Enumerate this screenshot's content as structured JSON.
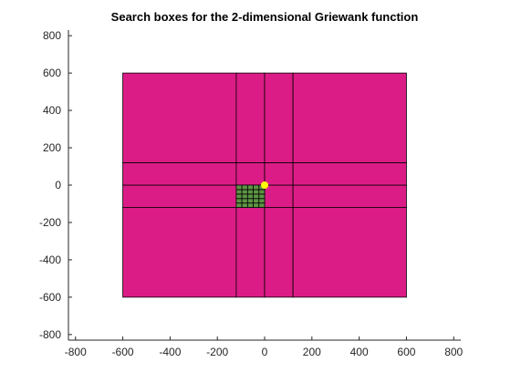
{
  "chart_data": {
    "type": "rectangles",
    "title": "Search boxes for the 2-dimensional Griewank function",
    "xlabel": "",
    "ylabel": "",
    "xlim": [
      -830,
      830
    ],
    "ylim": [
      -830,
      830
    ],
    "xticks": [
      -800,
      -600,
      -400,
      -200,
      0,
      200,
      400,
      600,
      800
    ],
    "yticks": [
      -800,
      -600,
      -400,
      -200,
      0,
      200,
      400,
      600,
      800
    ],
    "xtick_labels": [
      "-800",
      "-600",
      "-400",
      "-200",
      "0",
      "200",
      "400",
      "600",
      "800"
    ],
    "ytick_labels": [
      "-800",
      "-600",
      "-400",
      "-200",
      "0",
      "200",
      "400",
      "600",
      "800"
    ],
    "grid": false,
    "colors": {
      "outer_boxes": "#dc1c86",
      "inner_boxes": "#5d9444",
      "edge": "#000000",
      "point": "#ffff00"
    },
    "outer_boxes": {
      "x_edges": [
        -600,
        -120,
        0,
        120,
        600
      ],
      "y_edges": [
        -600,
        -120,
        0,
        120,
        600
      ]
    },
    "inner_boxes": {
      "x_edges": [
        -120,
        -96,
        -72,
        -48,
        -24,
        0
      ],
      "y_edges": [
        -120,
        -96,
        -72,
        -48,
        -24,
        0
      ]
    },
    "point": {
      "x": 0,
      "y": 0
    }
  }
}
